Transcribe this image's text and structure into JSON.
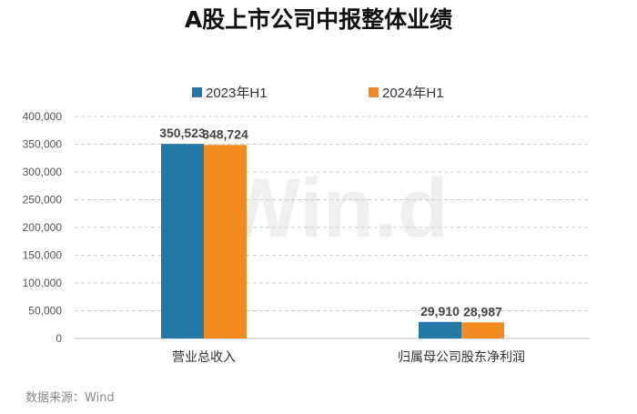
{
  "title": "A股上市公司中报整体业绩",
  "source": "数据来源：Wind",
  "watermark": "Win.d",
  "colors": {
    "series1": "#2478a5",
    "series2": "#f28a1f"
  },
  "chart_data": {
    "type": "bar",
    "title": "A股上市公司中报整体业绩",
    "categories": [
      "营业总收入",
      "归属母公司股东净利润"
    ],
    "series": [
      {
        "name": "2023年H1",
        "values": [
          350523,
          29910
        ],
        "color": "#2478a5"
      },
      {
        "name": "2024年H1",
        "values": [
          348724,
          28987
        ],
        "color": "#f28a1f"
      }
    ],
    "data_labels": [
      [
        "350,523",
        "29,910"
      ],
      [
        "348,724",
        "28,987"
      ]
    ],
    "ylim": [
      0,
      400000
    ],
    "yticks": [
      "0",
      "50,000",
      "100,000",
      "150,000",
      "200,000",
      "250,000",
      "300,000",
      "350,000",
      "400,000"
    ],
    "ytick_values": [
      0,
      50000,
      100000,
      150000,
      200000,
      250000,
      300000,
      350000,
      400000
    ],
    "grid": true,
    "legend_position": "top"
  }
}
